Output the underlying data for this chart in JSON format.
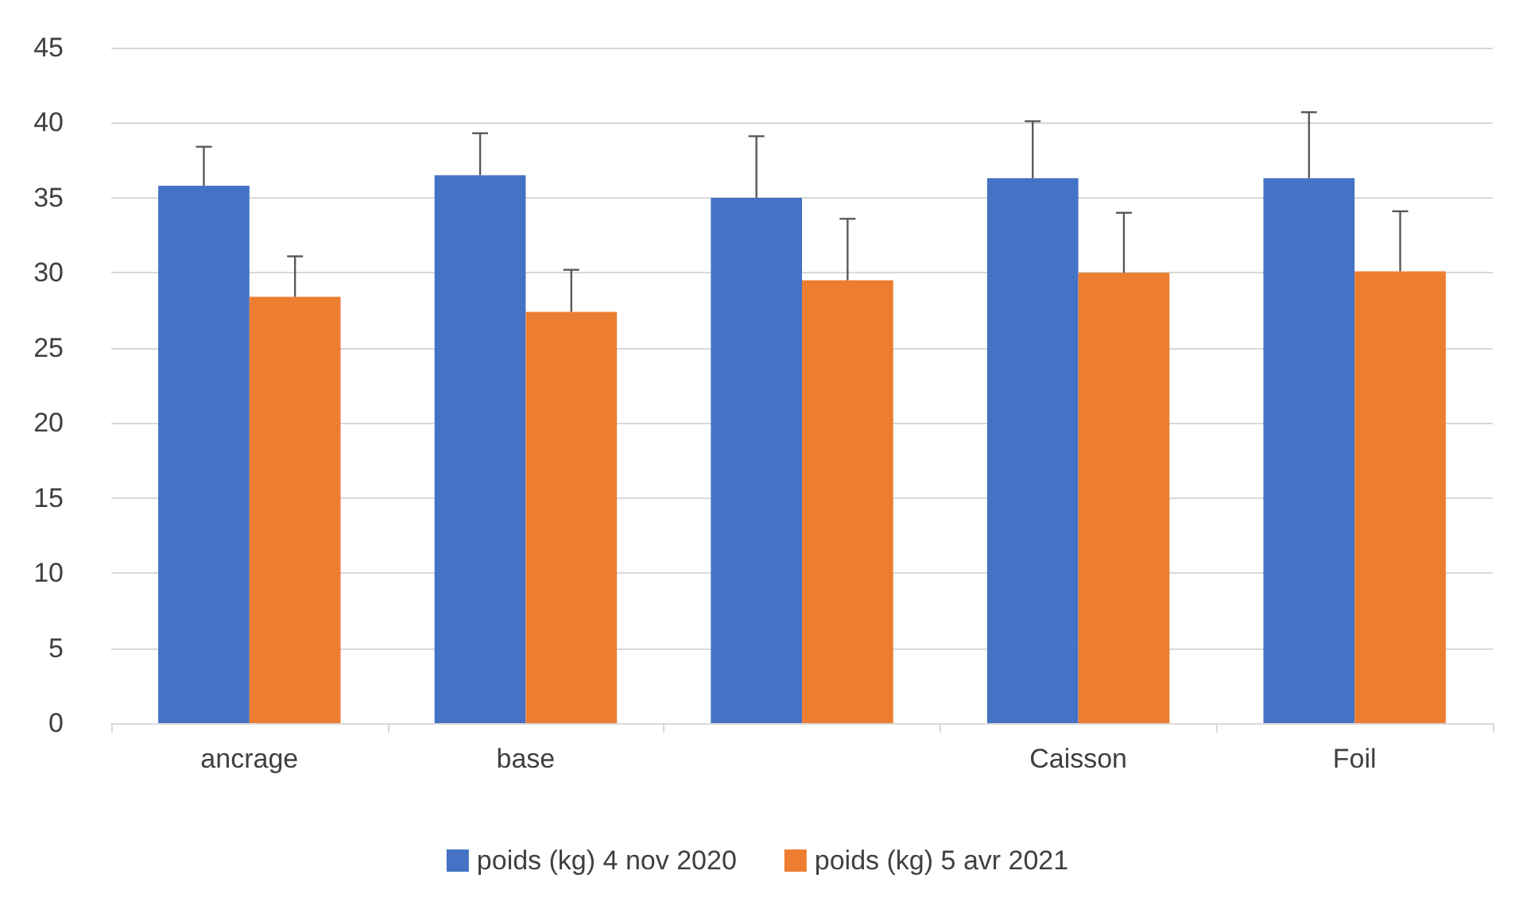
{
  "chart_data": {
    "type": "bar",
    "categories": [
      "ancrage",
      "base",
      null,
      "Caisson",
      "Foil"
    ],
    "series": [
      {
        "name": "poids (kg) 4 nov 2020",
        "color": "#4472c4",
        "values": [
          35.8,
          36.5,
          35.0,
          36.3,
          36.3
        ],
        "errors": [
          [
            35.8,
            38.4
          ],
          [
            36.5,
            39.3
          ],
          [
            35.0,
            39.1
          ],
          [
            36.3,
            40.1
          ],
          [
            36.3,
            40.7
          ]
        ]
      },
      {
        "name": "poids (kg) 5 avr 2021",
        "color": "#ed7d31",
        "values": [
          28.4,
          27.4,
          29.5,
          30.0,
          30.1
        ],
        "errors": [
          [
            28.4,
            31.1
          ],
          [
            27.4,
            30.2
          ],
          [
            29.5,
            33.6
          ],
          [
            30.0,
            34.0
          ],
          [
            30.1,
            34.1
          ]
        ]
      }
    ],
    "ylim": [
      0,
      45
    ],
    "yticks": [
      0,
      5,
      10,
      15,
      20,
      25,
      30,
      35,
      40,
      45
    ],
    "grid": "y",
    "legend": "bottom"
  }
}
